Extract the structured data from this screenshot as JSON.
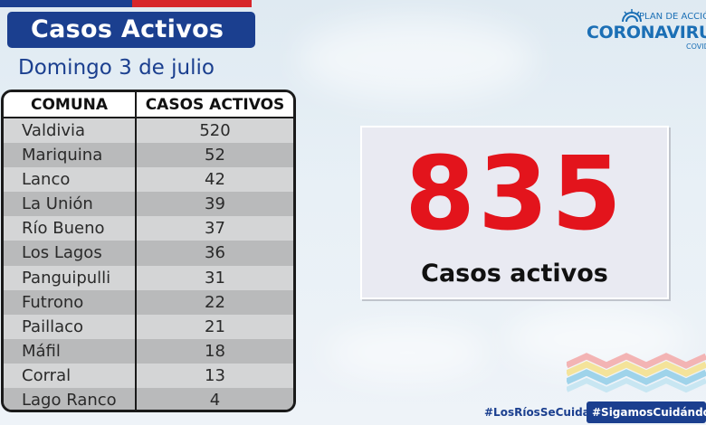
{
  "header": {
    "title": "Casos Activos",
    "date": "Domingo 3 de julio"
  },
  "table": {
    "columns": [
      "COMUNA",
      "CASOS ACTIVOS"
    ],
    "rows": [
      {
        "comuna": "Valdivia",
        "casos": "520"
      },
      {
        "comuna": "Mariquina",
        "casos": "52"
      },
      {
        "comuna": "Lanco",
        "casos": "42"
      },
      {
        "comuna": "La Unión",
        "casos": "39"
      },
      {
        "comuna": "Río Bueno",
        "casos": "37"
      },
      {
        "comuna": "Los Lagos",
        "casos": "36"
      },
      {
        "comuna": "Panguipulli",
        "casos": "31"
      },
      {
        "comuna": "Futrono",
        "casos": "22"
      },
      {
        "comuna": "Paillaco",
        "casos": "21"
      },
      {
        "comuna": "Máfil",
        "casos": "18"
      },
      {
        "comuna": "Corral",
        "casos": "13"
      },
      {
        "comuna": "Lago Ranco",
        "casos": "4"
      }
    ]
  },
  "summary": {
    "total": "835",
    "label": "Casos activos"
  },
  "logo": {
    "plan": "PLAN DE ACCIÓ",
    "main": "CORONAVIRU",
    "sub": "COVID"
  },
  "hashtags": {
    "first": "#LosRíosSeCuida",
    "second": "#SigamosCuidándono"
  },
  "colors": {
    "brand_blue": "#1b3f8f",
    "flag_red": "#d7262b",
    "number_red": "#e3141c",
    "logo_blue": "#1b6fb5"
  }
}
